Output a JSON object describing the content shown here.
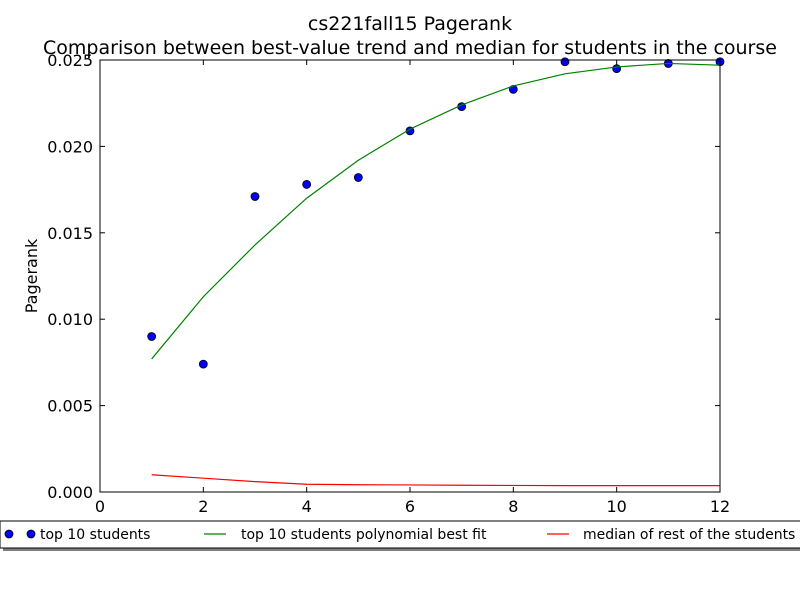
{
  "chart_data": {
    "type": "scatter",
    "title": "cs221fall15 Pagerank",
    "subtitle": "Comparison between best-value trend and median for students in the course",
    "xlabel": "",
    "ylabel": "Pagerank",
    "xlim": [
      0,
      12
    ],
    "ylim": [
      0.0,
      0.025
    ],
    "xticks": [
      "0",
      "2",
      "4",
      "6",
      "8",
      "10",
      "12"
    ],
    "yticks": [
      "0.000",
      "0.005",
      "0.010",
      "0.015",
      "0.020",
      "0.025"
    ],
    "grid": false,
    "legend_position": "bottom",
    "series": [
      {
        "name": "top 10 students",
        "kind": "markers",
        "color": "#0000ff",
        "x": [
          1,
          2,
          3,
          4,
          5,
          6,
          7,
          8,
          9,
          10,
          11,
          12
        ],
        "y": [
          0.009,
          0.0074,
          0.0171,
          0.0178,
          0.0182,
          0.0209,
          0.0223,
          0.0233,
          0.0249,
          0.0245,
          0.0248,
          0.0249
        ]
      },
      {
        "name": "top 10 students polynomial best fit",
        "kind": "line",
        "color": "#008000",
        "x": [
          1,
          2,
          3,
          4,
          5,
          6,
          7,
          8,
          9,
          10,
          11,
          12
        ],
        "y": [
          0.0077,
          0.0113,
          0.0143,
          0.017,
          0.0192,
          0.021,
          0.0224,
          0.0235,
          0.0242,
          0.0246,
          0.0248,
          0.0247
        ]
      },
      {
        "name": "median of rest of the students",
        "kind": "line",
        "color": "#ff0000",
        "x": [
          1,
          2,
          3,
          4,
          5,
          6,
          7,
          8,
          9,
          10,
          11,
          12
        ],
        "y": [
          0.001,
          0.0008,
          0.0006,
          0.00045,
          0.00042,
          0.00041,
          0.00039,
          0.00038,
          0.00037,
          0.00037,
          0.00037,
          0.00037
        ]
      }
    ]
  }
}
